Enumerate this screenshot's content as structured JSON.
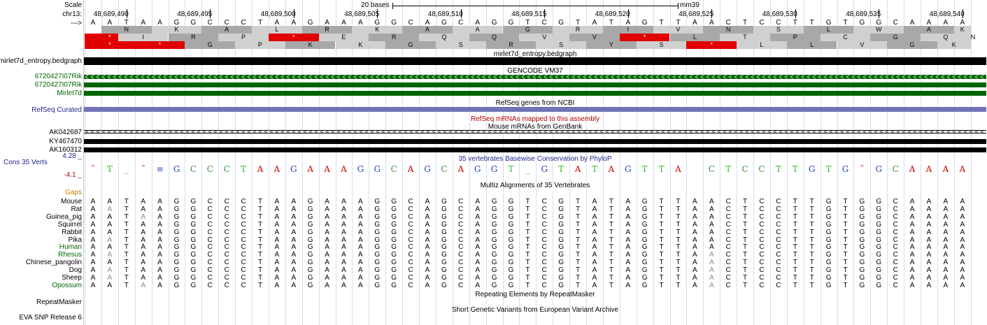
{
  "labels": {
    "scale": "Scale",
    "chrom": "chr13:",
    "strand": "--->",
    "mirlet_track": "mirlet7d_entropy.bedgraph",
    "gene1": "6720427I07Rik",
    "gene2": "6720427I07Rik",
    "gene3": "Mirlet7d",
    "refseq": "RefSeq Curated",
    "mrna1": "AK042687",
    "mrna2": "KY467470",
    "mrna3": "AK160312",
    "cons_track": "Cons 35 Verts",
    "cons_max": "4.28 _",
    "cons_min": "-4.1 _",
    "gaps": "Gaps",
    "repeatmasker": "RepeatMasker",
    "eva": "EVA SNP Release 6"
  },
  "scale": {
    "text": "20 bases",
    "assembly": "mm39"
  },
  "coords": [
    "48,689,490",
    "48,689,495",
    "48,689,500",
    "48,689,505",
    "48,689,510",
    "48,689,515",
    "48,689,520",
    "48,689,525",
    "48,689,530",
    "48,689,535",
    "48,689,540"
  ],
  "sequence": "AATAAGGCCCTAAGAAAGGCAGCAGGTCGTATAGTTAACTCCTTGTGGCAAAA",
  "aa_rows": [
    [
      {
        "t": "N",
        "s": 1
      },
      {
        "t": "K",
        "s": 4
      },
      {
        "t": "A",
        "s": 7
      },
      {
        "t": "L",
        "s": 10
      },
      {
        "t": "R",
        "s": 13
      },
      {
        "t": "K",
        "s": 16
      },
      {
        "t": "A",
        "s": 19
      },
      {
        "t": "A",
        "s": 22
      },
      {
        "t": "G",
        "s": 25
      },
      {
        "t": "R",
        "s": 28
      },
      {
        "t": "I",
        "s": 31
      },
      {
        "t": "V",
        "s": 34
      },
      {
        "t": "N",
        "s": 37
      },
      {
        "t": "S",
        "s": 40
      },
      {
        "t": "L",
        "s": 43
      },
      {
        "t": "W",
        "s": 46
      },
      {
        "t": "A",
        "s": 49
      },
      {
        "t": "K",
        "s": 52
      }
    ],
    [
      {
        "t": "*",
        "s": 0
      },
      {
        "t": "I",
        "s": 2
      },
      {
        "t": "R",
        "s": 5
      },
      {
        "t": "P",
        "s": 8
      },
      {
        "t": "*",
        "s": 11
      },
      {
        "t": "E",
        "s": 14
      },
      {
        "t": "R",
        "s": 17
      },
      {
        "t": "Q",
        "s": 20
      },
      {
        "t": "Q",
        "s": 23
      },
      {
        "t": "V",
        "s": 26
      },
      {
        "t": "V",
        "s": 29
      },
      {
        "t": "*",
        "s": 32
      },
      {
        "t": "L",
        "s": 35
      },
      {
        "t": "T",
        "s": 38
      },
      {
        "t": "P",
        "s": 41
      },
      {
        "t": "C",
        "s": 44
      },
      {
        "t": "G",
        "s": 47
      },
      {
        "t": "Q",
        "s": 50
      },
      {
        "t": "N",
        "s": 53
      }
    ],
    [
      {
        "t": "*",
        "s": 0
      },
      {
        "t": "*",
        "s": 3
      },
      {
        "t": "G",
        "s": 6
      },
      {
        "t": "P",
        "s": 9
      },
      {
        "t": "K",
        "s": 12
      },
      {
        "t": "K",
        "s": 15
      },
      {
        "t": "G",
        "s": 18
      },
      {
        "t": "S",
        "s": 21
      },
      {
        "t": "R",
        "s": 24
      },
      {
        "t": "S",
        "s": 27
      },
      {
        "t": "Y",
        "s": 30
      },
      {
        "t": "S",
        "s": 33
      },
      {
        "t": "*",
        "s": 36
      },
      {
        "t": "L",
        "s": 39
      },
      {
        "t": "L",
        "s": 42
      },
      {
        "t": "V",
        "s": 45
      },
      {
        "t": "G",
        "s": 48
      },
      {
        "t": "K",
        "s": 51
      }
    ]
  ],
  "mirlet_title": "mirlet7d_entropy.bedgraph",
  "gencode_title": "GENCODE VM37",
  "refseq_title": "RefSeq genes from NCBI",
  "refseq_mrna_title": "RefSeq mRNAs mapped to this assembly",
  "mouse_mrna_title": "Mouse mRNAs from GenBank",
  "phylop_title": "35 vertebrates Basewise Conservation by PhyloP",
  "multiz_title": "Multiz Alignments of 35 Vertebrates",
  "repeat_title": "Repeating Elements by RepeatMasker",
  "eva_title": "Short Genetic Variants from European Variant Archive",
  "cons_seq": "~T_~sGCCCTAAGAAAGGCAGCAGGT_GTATAGTTA CTCCTTGTG~GCAAAA",
  "species": [
    {
      "name": "Mouse",
      "color": "#000000"
    },
    {
      "name": "Rat",
      "color": "#000000"
    },
    {
      "name": "Guinea_pig",
      "color": "#000000"
    },
    {
      "name": "Squirrel",
      "color": "#000000"
    },
    {
      "name": "Rabbit",
      "color": "#000000"
    },
    {
      "name": "Pika",
      "color": "#000000"
    },
    {
      "name": "Human",
      "color": "#006400"
    },
    {
      "name": "Rhesus",
      "color": "#006400"
    },
    {
      "name": "Chinese_pangolin",
      "color": "#000000"
    },
    {
      "name": "Dog",
      "color": "#000000"
    },
    {
      "name": "Sheep",
      "color": "#000000"
    },
    {
      "name": "Opossum",
      "color": "#006400"
    }
  ],
  "colors": {
    "gencode_green": "#006400",
    "refseq_purple": "#7272b8",
    "refseq_label": "#1f1f8f",
    "refseq_mrna_red": "#b20000",
    "gaps_orange": "#cc7a00",
    "cons_label": "#1f1f8f",
    "stop_red": "#e00000",
    "aa_dark": "#a8a8a8",
    "aa_light": "#d0d0d0"
  }
}
